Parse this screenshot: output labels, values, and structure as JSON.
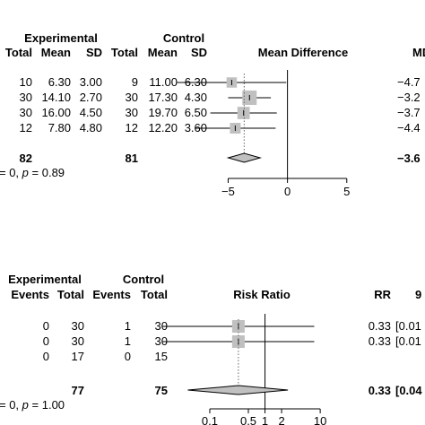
{
  "chart_data": [
    {
      "type": "forest",
      "groups": [
        "Experimental",
        "Control"
      ],
      "columns": [
        "Total",
        "Mean",
        "SD",
        "Total",
        "Mean",
        "SD"
      ],
      "effect_label": "Mean Difference",
      "right_header": "MD",
      "rows": [
        {
          "exp_total": "10",
          "exp_mean": "6.30",
          "exp_sd": "3.00",
          "ctl_total": "9",
          "ctl_mean": "11.00",
          "ctl_sd": "6.30",
          "est": -4.7,
          "lo": -9.3,
          "hi": -0.1,
          "weight": 0.5,
          "effect_text": "−4.7"
        },
        {
          "exp_total": "30",
          "exp_mean": "14.10",
          "exp_sd": "2.70",
          "ctl_total": "30",
          "ctl_mean": "17.30",
          "ctl_sd": "4.30",
          "est": -3.2,
          "lo": -5.0,
          "hi": -1.4,
          "weight": 1.0,
          "effect_text": "−3.2"
        },
        {
          "exp_total": "30",
          "exp_mean": "16.00",
          "exp_sd": "4.50",
          "ctl_total": "30",
          "ctl_mean": "19.70",
          "ctl_sd": "6.50",
          "est": -3.7,
          "lo": -6.5,
          "hi": -0.9,
          "weight": 0.75,
          "effect_text": "−3.7"
        },
        {
          "exp_total": "12",
          "exp_mean": "7.80",
          "exp_sd": "4.80",
          "ctl_total": "12",
          "ctl_mean": "12.20",
          "ctl_sd": "3.60",
          "est": -4.4,
          "lo": -7.8,
          "hi": -1.0,
          "weight": 0.55,
          "effect_text": "−4.4"
        }
      ],
      "total": {
        "exp_total": "82",
        "ctl_total": "81",
        "est": -3.65,
        "lo": -5.0,
        "hi": -2.3,
        "effect_text": "−3.6"
      },
      "heterogeneity": {
        "prefix": "= 0, ",
        "p_label": "p",
        "p_text": " = 0.89"
      },
      "axis": {
        "scale": "linear",
        "xlim": [
          -7,
          6
        ],
        "ticks": [
          -5,
          0,
          5
        ],
        "tick_labels": [
          "−5",
          "0",
          "5"
        ],
        "null_value": 0
      }
    },
    {
      "type": "forest",
      "groups": [
        "Experimental",
        "Control"
      ],
      "columns": [
        "Events",
        "Total",
        "Events",
        "Total"
      ],
      "effect_label": "Risk Ratio",
      "right_header": "RR",
      "right_header2": "9",
      "rows": [
        {
          "exp_events": "0",
          "exp_total": "30",
          "ctl_events": "1",
          "ctl_total": "30",
          "est": 0.33,
          "lo": 0.014,
          "hi": 7.8,
          "weight": 1.0,
          "effect_text": "0.33",
          "ci_text": "[0.01"
        },
        {
          "exp_events": "0",
          "exp_total": "30",
          "ctl_events": "1",
          "ctl_total": "30",
          "est": 0.33,
          "lo": 0.014,
          "hi": 7.8,
          "weight": 1.0,
          "effect_text": "0.33",
          "ci_text": "[0.01"
        },
        {
          "exp_events": "0",
          "exp_total": "17",
          "ctl_events": "0",
          "ctl_total": "15",
          "est": null,
          "effect_text": "",
          "ci_text": ""
        }
      ],
      "total": {
        "exp_total": "77",
        "ctl_total": "75",
        "est": 0.33,
        "lo": 0.04,
        "hi": 2.6,
        "effect_text": "0.33",
        "ci_text": "[0.04"
      },
      "heterogeneity": {
        "prefix": "= 0, ",
        "p_label": "p",
        "p_text": " = 1.00"
      },
      "axis": {
        "scale": "log",
        "xlim": [
          0.08,
          12
        ],
        "ticks": [
          0.1,
          0.5,
          1,
          2,
          10
        ],
        "tick_labels": [
          "0.1",
          "0.5",
          "1",
          "2",
          "10"
        ],
        "null_value": 1
      }
    }
  ]
}
